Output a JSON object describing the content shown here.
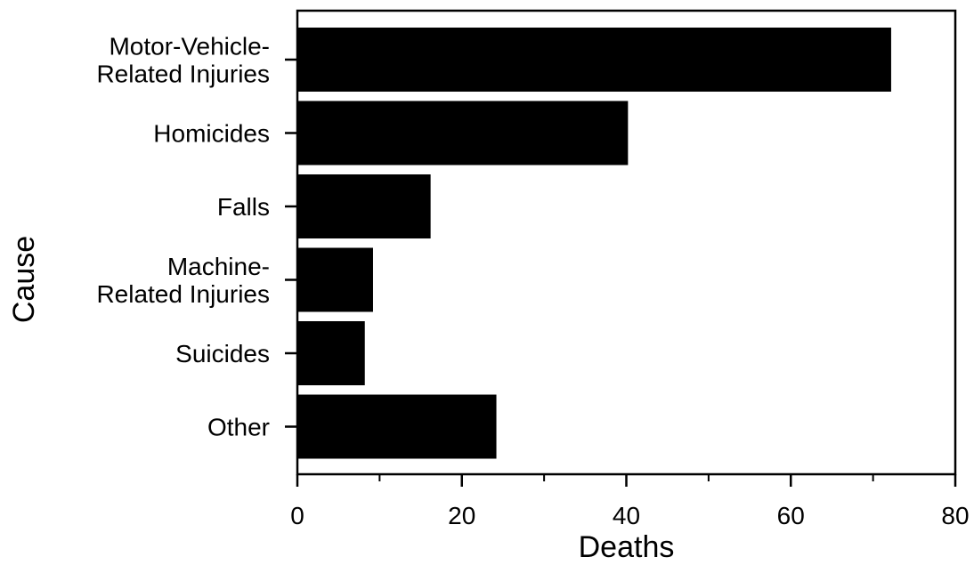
{
  "chart_data": {
    "type": "bar",
    "orientation": "horizontal",
    "categories": [
      "Motor-Vehicle-\nRelated Injuries",
      "Homicides",
      "Falls",
      "Machine-\nRelated Injuries",
      "Suicides",
      "Other"
    ],
    "values": [
      72.2,
      40.2,
      16.2,
      9.2,
      8.2,
      24.2
    ],
    "xlabel": "Deaths",
    "ylabel": "Cause",
    "xlim": [
      0,
      80
    ],
    "x_ticks": [
      0,
      20,
      40,
      60,
      80
    ],
    "x_minor_ticks": [
      10,
      30,
      50,
      70
    ],
    "grid": false,
    "legend": "none",
    "bar_color": "#000000"
  }
}
